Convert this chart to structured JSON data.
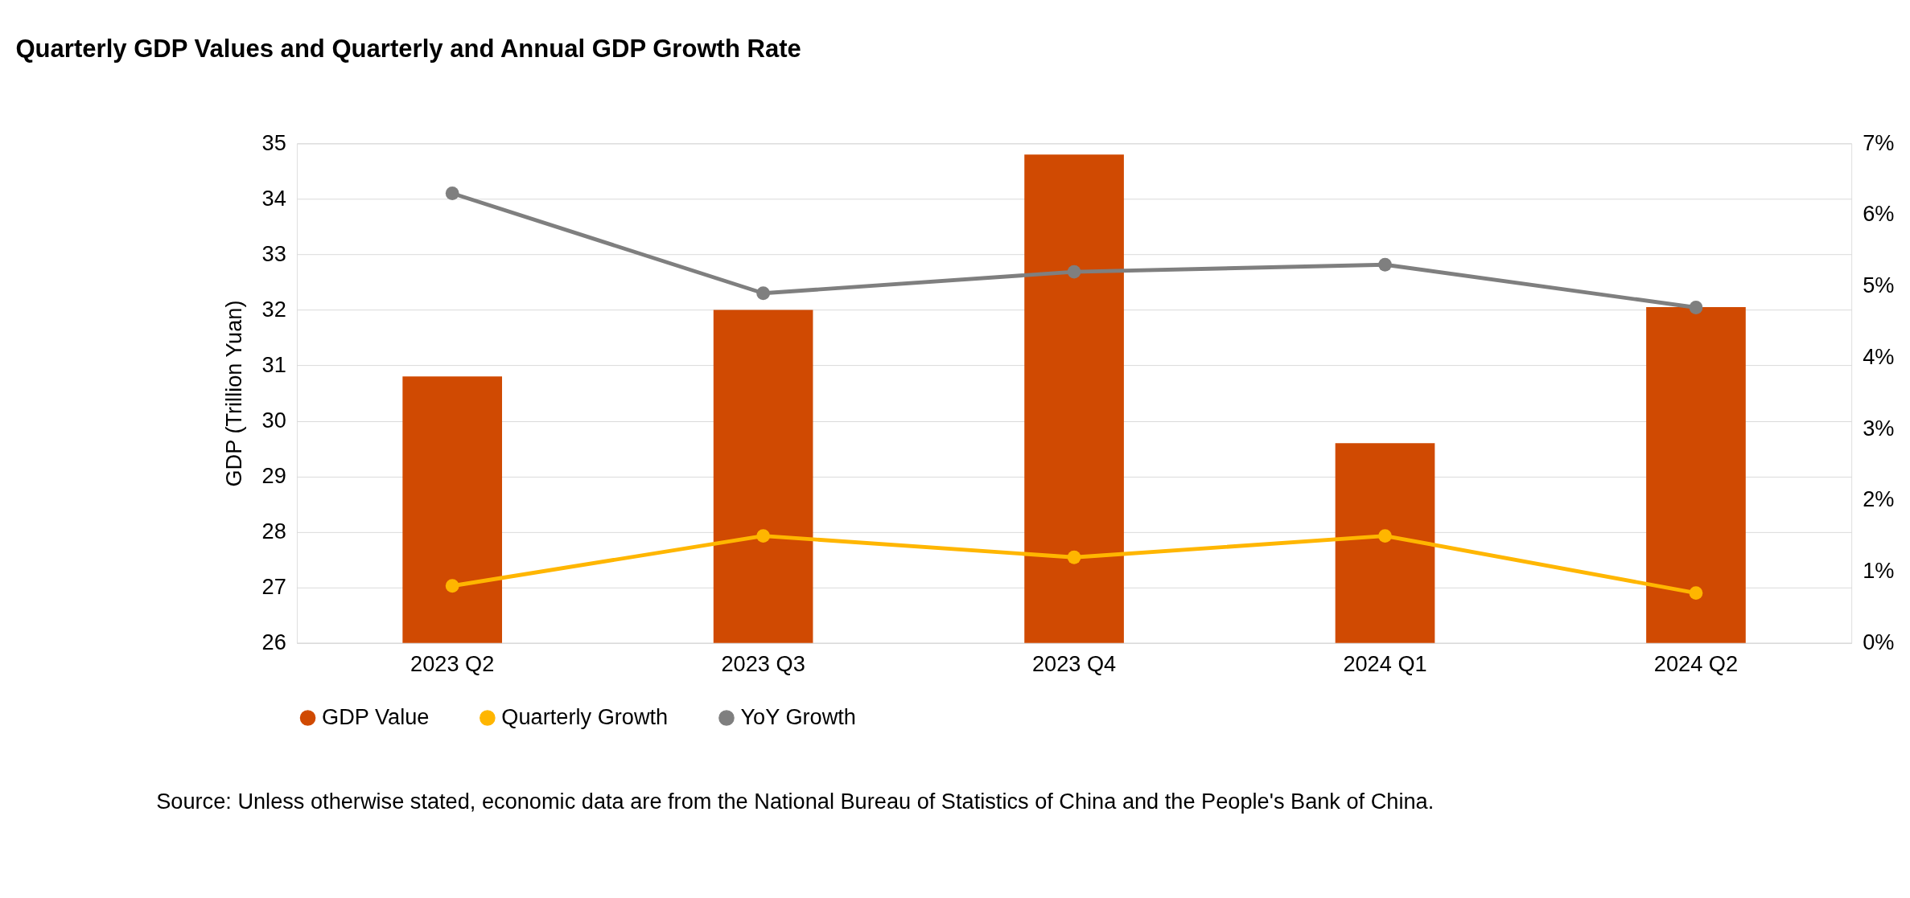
{
  "chart_data": {
    "type": "bar",
    "title": "Quarterly GDP Values and Quarterly and Annual GDP Growth Rate",
    "ylabel": "GDP (Trillion Yuan)",
    "categories": [
      "2023 Q2",
      "2023 Q3",
      "2023 Q4",
      "2024 Q1",
      "2024 Q2"
    ],
    "series": [
      {
        "name": "GDP Value",
        "color": "#d04a02",
        "values": [
          30.8,
          32.0,
          34.8,
          29.6,
          32.05
        ]
      },
      {
        "name": "Quarterly Growth",
        "type": "line",
        "axis": "y2",
        "color": "#ffb600",
        "values": [
          0.8,
          1.5,
          1.2,
          1.5,
          0.7
        ]
      },
      {
        "name": "YoY Growth",
        "type": "line",
        "axis": "y2",
        "color": "#7f7f7f",
        "values": [
          6.3,
          4.9,
          5.2,
          5.3,
          4.7
        ]
      }
    ],
    "ylim": [
      26,
      35
    ],
    "yticks": [
      26,
      27,
      28,
      29,
      30,
      31,
      32,
      33,
      34,
      35
    ],
    "y2lim": [
      0,
      7
    ],
    "y2ticks": [
      {
        "value": 0,
        "label": "0%"
      },
      {
        "value": 1,
        "label": "1%"
      },
      {
        "value": 2,
        "label": "2%"
      },
      {
        "value": 3,
        "label": "3%"
      },
      {
        "value": 4,
        "label": "4%"
      },
      {
        "value": 5,
        "label": "5%"
      },
      {
        "value": 6,
        "label": "6%"
      },
      {
        "value": 7,
        "label": "7%"
      }
    ],
    "grid": "y",
    "legend": "bottom",
    "marker": "circle",
    "line_style": "solid",
    "annotations": [
      "Source: Unless otherwise stated, economic data are from the National Bureau of Statistics of China and the People's Bank of China."
    ]
  }
}
